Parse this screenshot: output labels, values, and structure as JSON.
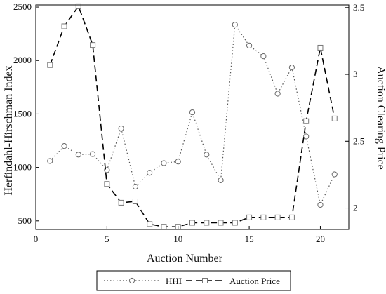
{
  "chart_data": {
    "type": "line",
    "xlabel": "Auction Number",
    "ylabel_left": "Herfindahl-Hirschman Index",
    "ylabel_right": "Auction Clearing Price",
    "xlim": [
      0,
      22
    ],
    "xticks": [
      "0",
      "5",
      "10",
      "15",
      "20"
    ],
    "ylim_left": [
      420,
      2520
    ],
    "yticks_left": [
      "500",
      "1000",
      "1500",
      "2000",
      "2500"
    ],
    "ylim_right": [
      1.84,
      3.52
    ],
    "yticks_right": [
      "2",
      "2.5",
      "3",
      "3.5"
    ],
    "grid": false,
    "legend_position": "bottom-center",
    "x": [
      1,
      2,
      3,
      4,
      5,
      6,
      7,
      8,
      9,
      10,
      11,
      12,
      13,
      14,
      15,
      16,
      17,
      18,
      19,
      20,
      21
    ],
    "series": [
      {
        "name": "HHI",
        "axis": "left",
        "marker": "circle",
        "line_style": "dotted",
        "color": "#555555",
        "values": [
          1060,
          1200,
          1120,
          1125,
          975,
          1365,
          820,
          950,
          1040,
          1055,
          1515,
          1120,
          880,
          2335,
          2140,
          2040,
          1690,
          1935,
          1290,
          650,
          935
        ]
      },
      {
        "name": "Auction Price",
        "axis": "right",
        "marker": "square",
        "line_style": "dashed",
        "color": "#000000",
        "values": [
          3.07,
          3.36,
          3.51,
          3.22,
          2.18,
          2.04,
          2.05,
          1.88,
          1.86,
          1.86,
          1.89,
          1.89,
          1.89,
          1.89,
          1.93,
          1.93,
          1.93,
          1.93,
          2.65,
          3.2,
          2.67
        ]
      }
    ]
  }
}
